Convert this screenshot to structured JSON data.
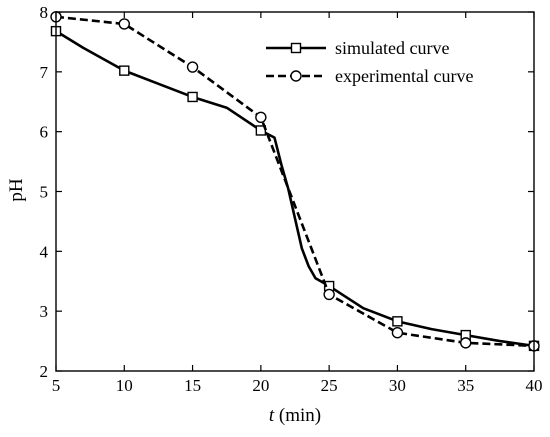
{
  "chart_data": {
    "type": "line",
    "title": "",
    "xlabel": {
      "var": "t",
      "unit": " (min)"
    },
    "ylabel": "pH",
    "xlim": [
      5,
      40
    ],
    "ylim": [
      2,
      8
    ],
    "xticks": [
      5,
      10,
      15,
      20,
      25,
      30,
      35,
      40
    ],
    "yticks": [
      2,
      3,
      4,
      5,
      6,
      7,
      8
    ],
    "grid": false,
    "legend_position": "top-right",
    "series": [
      {
        "name": "simulated curve",
        "line_style": "solid",
        "marker": "square",
        "color": "#000000",
        "x": [
          5,
          7,
          10,
          12.5,
          15,
          17.5,
          20,
          21,
          21.5,
          22,
          22.5,
          23,
          23.5,
          24,
          25,
          27.5,
          30,
          32.5,
          35,
          37.5,
          40
        ],
        "y": [
          7.68,
          7.4,
          7.02,
          6.8,
          6.58,
          6.4,
          6.02,
          5.9,
          5.45,
          5.05,
          4.55,
          4.05,
          3.75,
          3.55,
          3.42,
          3.05,
          2.83,
          2.7,
          2.6,
          2.5,
          2.42
        ],
        "marker_x": [
          5,
          10,
          15,
          20,
          25,
          30,
          35,
          40
        ],
        "marker_y": [
          7.68,
          7.02,
          6.58,
          6.02,
          3.42,
          2.83,
          2.6,
          2.42
        ]
      },
      {
        "name": "experimental curve",
        "line_style": "dashed",
        "marker": "circle",
        "color": "#000000",
        "x": [
          5,
          10,
          15,
          20,
          25,
          30,
          35,
          40
        ],
        "y": [
          7.92,
          7.8,
          7.08,
          6.24,
          3.28,
          2.64,
          2.47,
          2.42
        ],
        "marker_x": [
          5,
          10,
          15,
          20,
          25,
          30,
          35,
          40
        ],
        "marker_y": [
          7.92,
          7.8,
          7.08,
          6.24,
          3.28,
          2.64,
          2.47,
          2.42
        ]
      }
    ]
  }
}
